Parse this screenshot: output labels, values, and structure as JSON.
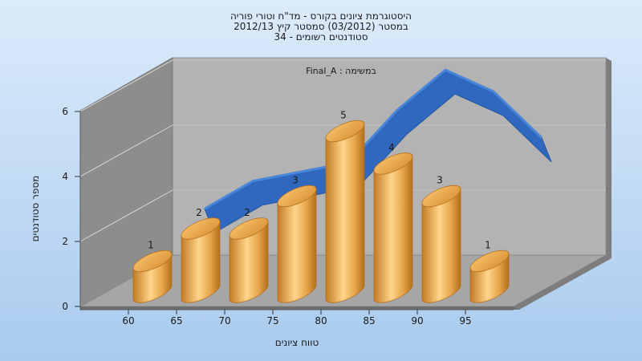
{
  "chart_data": {
    "type": "bar",
    "title": [
      "היסטוגרמת ציונים בקורס - מד\"ח וטורי פוריה",
      "במסטר  (03/2012)  סמסטר קיץ 2012/13",
      "סטודנטים רשומים - 34"
    ],
    "annotation": "Final_A : במשימה",
    "xlabel": "טווח ציונים",
    "ylabel": "מספר סטודנטים",
    "x_ticks": [
      "60",
      "65",
      "70",
      "75",
      "80",
      "85",
      "90",
      "95"
    ],
    "y_ticks": [
      "0",
      "2",
      "4",
      "6"
    ],
    "ylim": [
      0,
      6
    ],
    "categories": [
      "60",
      "65",
      "70",
      "75",
      "80",
      "85",
      "90",
      "95"
    ],
    "series": [
      {
        "type": "bar",
        "values": [
          1,
          2,
          2,
          3,
          5,
          4,
          3,
          1
        ],
        "color": "#E6A54A"
      },
      {
        "type": "line",
        "values": [
          1.5,
          2.4,
          2.7,
          3.0,
          4.7,
          6.0,
          5.3,
          3.8
        ],
        "color": "#2F68BE"
      }
    ],
    "colors": {
      "background_top": "#DCEBFA",
      "background_bottom": "#A9CBEE",
      "wall": "#B3B3B3",
      "side_wall": "#8D8D8D",
      "floor": "#A6A6A6"
    }
  }
}
